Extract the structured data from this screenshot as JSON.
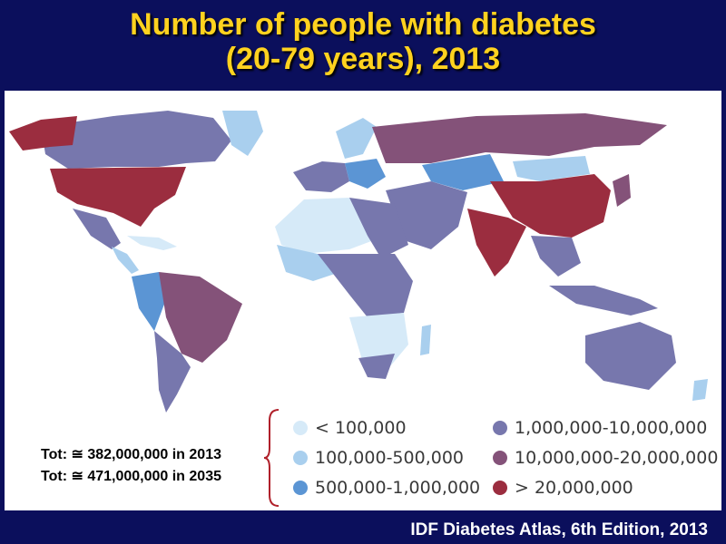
{
  "title": {
    "line1": "Number of people with diabetes",
    "line2": "(20-79 years), 2013"
  },
  "legend": {
    "items": [
      {
        "label": "< 100,000",
        "color": "#d6eaf8"
      },
      {
        "label": "100,000-500,000",
        "color": "#a9cfee"
      },
      {
        "label": "500,000-1,000,000",
        "color": "#5b95d4"
      },
      {
        "label": "1,000,000-10,000,000",
        "color": "#7777ad"
      },
      {
        "label": "10,000,000-20,000,000",
        "color": "#845279"
      },
      {
        "label": "> 20,000,000",
        "color": "#9b2d3f"
      }
    ]
  },
  "totals": {
    "line1": "Tot: ≅ 382,000,000 in 2013",
    "line2": "Tot: ≅ 471,000,000 in 2035"
  },
  "footer": "IDF Diabetes  Atlas, 6th Edition, 2013",
  "colors": {
    "background": "#0b0f5c",
    "title": "#ffd21f",
    "brace": "#b0202a"
  }
}
